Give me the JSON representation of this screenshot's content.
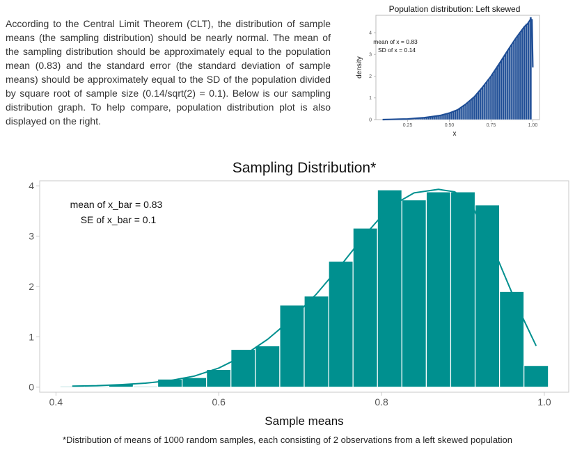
{
  "intro_text": "According to the Central Limit Theorem (CLT), the distribution of sample means (the sampling distribution) should be nearly normal. The mean of the sampling distribution should be approximately equal to the population mean (0.83) and the standard error (the standard deviation of sample means) should be approximately equal to the SD of the population divided by square root of sample size (0.14/sqrt(2) = 0.1). Below is our sampling distribution graph. To help compare, population distribution plot is also displayed on the right.",
  "footnote": "*Distribution of means of 1000 random samples, each consisting of 2 observations from a left skewed population",
  "colors": {
    "pop_bar": "#1f4e96",
    "main_bar": "#00908f",
    "main_curve": "#00908f",
    "axis_text": "#555555"
  },
  "chart_data": [
    {
      "type": "bar",
      "title": "Population distribution: Left skewed",
      "xlabel": "x",
      "ylabel": "density",
      "xlim": [
        0.06,
        1.04
      ],
      "ylim": [
        0,
        4.8
      ],
      "x_ticks": [
        "0.25",
        "0.50",
        "0.75",
        "1.00"
      ],
      "y_ticks": [
        "0",
        "1",
        "2",
        "3",
        "4"
      ],
      "annotation": [
        "mean of x = 0.83",
        "SD of x = 0.14"
      ],
      "bin_width": 0.0125,
      "x": [
        0.3,
        0.3125,
        0.325,
        0.3375,
        0.35,
        0.3625,
        0.375,
        0.3875,
        0.4,
        0.4125,
        0.425,
        0.4375,
        0.45,
        0.4625,
        0.475,
        0.4875,
        0.5,
        0.5125,
        0.525,
        0.5375,
        0.55,
        0.5625,
        0.575,
        0.5875,
        0.6,
        0.6125,
        0.625,
        0.6375,
        0.65,
        0.6625,
        0.675,
        0.6875,
        0.7,
        0.7125,
        0.725,
        0.7375,
        0.75,
        0.7625,
        0.775,
        0.7875,
        0.8,
        0.8125,
        0.825,
        0.8375,
        0.85,
        0.8625,
        0.875,
        0.8875,
        0.9,
        0.9125,
        0.925,
        0.9375,
        0.95,
        0.9625,
        0.975,
        0.9875
      ],
      "values": [
        0.06,
        0.07,
        0.08,
        0.09,
        0.1,
        0.11,
        0.12,
        0.13,
        0.14,
        0.16,
        0.17,
        0.19,
        0.2,
        0.22,
        0.24,
        0.27,
        0.3,
        0.34,
        0.38,
        0.42,
        0.47,
        0.52,
        0.58,
        0.65,
        0.72,
        0.8,
        0.88,
        0.97,
        1.06,
        1.16,
        1.26,
        1.37,
        1.49,
        1.61,
        1.74,
        1.87,
        2.0,
        2.14,
        2.28,
        2.43,
        2.58,
        2.73,
        2.88,
        3.03,
        3.18,
        3.33,
        3.48,
        3.62,
        3.76,
        3.9,
        4.03,
        4.16,
        4.28,
        4.42,
        4.5,
        4.72
      ],
      "density_curve": {
        "x": [
          0.1,
          0.15,
          0.2,
          0.25,
          0.3,
          0.35,
          0.4,
          0.45,
          0.5,
          0.55,
          0.6,
          0.65,
          0.7,
          0.75,
          0.8,
          0.85,
          0.9,
          0.95,
          0.97,
          0.985,
          0.995,
          1.0
        ],
        "y": [
          0.0,
          0.01,
          0.02,
          0.03,
          0.06,
          0.09,
          0.14,
          0.2,
          0.3,
          0.45,
          0.72,
          1.05,
          1.5,
          2.0,
          2.58,
          3.18,
          3.76,
          4.28,
          4.42,
          4.6,
          4.6,
          2.4
        ]
      }
    },
    {
      "type": "bar",
      "title": "Sampling Distribution*",
      "xlabel": "Sample means",
      "ylabel": "",
      "xlim": [
        0.38,
        1.03
      ],
      "ylim": [
        -0.1,
        4.1
      ],
      "x_ticks": [
        "0.4",
        "0.6",
        "0.8",
        "1.0"
      ],
      "y_ticks": [
        "0",
        "1",
        "2",
        "3",
        "4"
      ],
      "annotation": [
        "mean of x_bar = 0.83",
        "SE of x_bar = 0.1"
      ],
      "bin_width": 0.03,
      "x": [
        0.42,
        0.45,
        0.48,
        0.51,
        0.54,
        0.57,
        0.6,
        0.63,
        0.66,
        0.69,
        0.72,
        0.75,
        0.78,
        0.81,
        0.84,
        0.87,
        0.9,
        0.93,
        0.96,
        0.99
      ],
      "values": [
        0.02,
        0.02,
        0.06,
        0.02,
        0.16,
        0.19,
        0.35,
        0.75,
        0.82,
        1.63,
        1.81,
        2.5,
        3.16,
        3.92,
        3.72,
        3.88,
        3.88,
        3.62,
        1.9,
        0.43
      ],
      "density_curve": {
        "x": [
          0.42,
          0.45,
          0.48,
          0.51,
          0.54,
          0.57,
          0.6,
          0.63,
          0.66,
          0.69,
          0.72,
          0.75,
          0.78,
          0.81,
          0.84,
          0.87,
          0.89,
          0.91,
          0.94,
          0.97,
          0.99
        ],
        "y": [
          0.02,
          0.03,
          0.05,
          0.08,
          0.13,
          0.22,
          0.38,
          0.62,
          0.95,
          1.36,
          1.85,
          2.42,
          3.03,
          3.58,
          3.86,
          3.93,
          3.88,
          3.64,
          2.65,
          1.5,
          0.82
        ]
      }
    }
  ]
}
